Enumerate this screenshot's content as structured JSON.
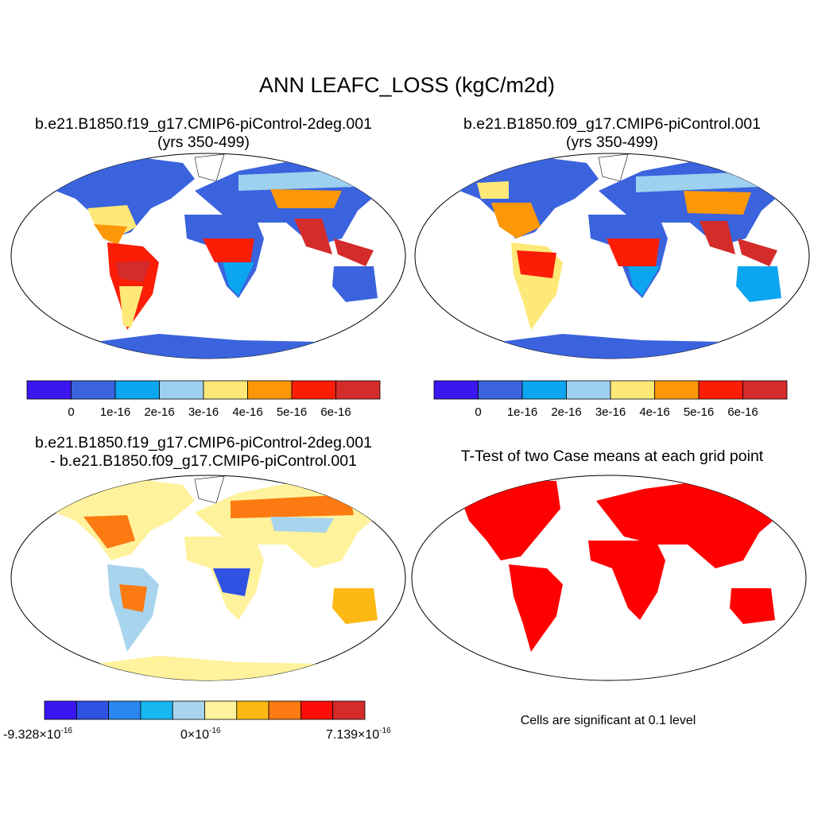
{
  "title": "ANN LEAFC_LOSS (kgC/m2d)",
  "panels": {
    "case1": {
      "title": "b.e21.B1850.f19_g17.CMIP6-piControl-2deg.001",
      "subtitle": "(yrs 350-499)"
    },
    "case2": {
      "title": "b.e21.B1850.f09_g17.CMIP6-piControl.001",
      "subtitle": "(yrs 350-499)"
    },
    "diff": {
      "title": "b.e21.B1850.f19_g17.CMIP6-piControl-2deg.001",
      "subtitle": "- b.e21.B1850.f09_g17.CMIP6-piControl.001"
    },
    "ttest": {
      "title": "T-Test of two Case means at each grid point",
      "note": "Cells are significant at 0.1 level"
    }
  },
  "colorbars": {
    "cases": {
      "colors": [
        "#3b16f0",
        "#3a63dd",
        "#0ca5f0",
        "#9ed0ef",
        "#fde878",
        "#fc9708",
        "#fc1d07",
        "#d42b2b"
      ],
      "labels": [
        "0",
        "1e-16",
        "2e-16",
        "3e-16",
        "4e-16",
        "5e-16",
        "6e-16"
      ]
    },
    "diff": {
      "colors": [
        "#3b16f0",
        "#3052e3",
        "#2a86f0",
        "#18b7f2",
        "#a8d4ee",
        "#fff29c",
        "#fdb913",
        "#fb7a12",
        "#fc0d07",
        "#d42b2b"
      ],
      "labels": [
        {
          "mantissa": "-9.328",
          "exponent": "-16"
        },
        {
          "mantissa": "0",
          "exponent": "-16"
        },
        {
          "mantissa": "7.139",
          "exponent": "-16"
        }
      ]
    }
  },
  "colors": {
    "background": "#ffffff",
    "significant": "#fe0000"
  }
}
